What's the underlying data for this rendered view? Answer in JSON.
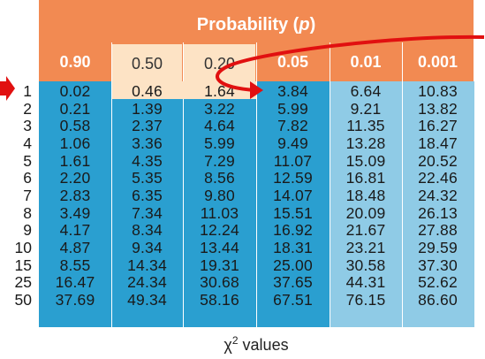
{
  "title": "Probability (p)",
  "title_prefix": "Probability (",
  "title_symbol": "p",
  "title_suffix": ")",
  "columns": [
    "0.90",
    "0.50",
    "0.20",
    "0.05",
    "0.01",
    "0.001"
  ],
  "df": [
    "1",
    "2",
    "3",
    "4",
    "5",
    "6",
    "7",
    "8",
    "9",
    "10",
    "15",
    "25",
    "50"
  ],
  "table": [
    [
      "0.02",
      "0.46",
      "1.64",
      "3.84",
      "6.64",
      "10.83"
    ],
    [
      "0.21",
      "1.39",
      "3.22",
      "5.99",
      "9.21",
      "13.82"
    ],
    [
      "0.58",
      "2.37",
      "4.64",
      "7.82",
      "11.35",
      "16.27"
    ],
    [
      "1.06",
      "3.36",
      "5.99",
      "9.49",
      "13.28",
      "18.47"
    ],
    [
      "1.61",
      "4.35",
      "7.29",
      "11.07",
      "15.09",
      "20.52"
    ],
    [
      "2.20",
      "5.35",
      "8.56",
      "12.59",
      "16.81",
      "22.46"
    ],
    [
      "2.83",
      "6.35",
      "9.80",
      "14.07",
      "18.48",
      "24.32"
    ],
    [
      "3.49",
      "7.34",
      "11.03",
      "15.51",
      "20.09",
      "26.13"
    ],
    [
      "4.17",
      "8.34",
      "12.24",
      "16.92",
      "21.67",
      "27.88"
    ],
    [
      "4.87",
      "9.34",
      "13.44",
      "18.31",
      "23.21",
      "29.59"
    ],
    [
      "8.55",
      "14.34",
      "19.31",
      "25.00",
      "30.58",
      "37.30"
    ],
    [
      "16.47",
      "24.34",
      "30.68",
      "37.65",
      "44.31",
      "52.62"
    ],
    [
      "37.69",
      "49.34",
      "58.16",
      "67.51",
      "76.15",
      "86.60"
    ]
  ],
  "caption": "χ² values",
  "caption_prefix": "χ",
  "caption_sup": "2",
  "caption_suffix": " values",
  "colors": {
    "header": "#f28a52",
    "header_highlight": "#fde3c5",
    "body_blue": "#2a9fd0",
    "body_light_blue": "#8fcbe6",
    "row_highlight": "#fde3c5",
    "arrow": "#e11010"
  }
}
